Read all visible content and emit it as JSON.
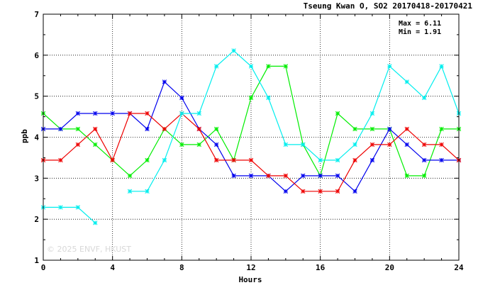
{
  "chart_data": {
    "type": "line",
    "title": "Tseung Kwan O, SO2 20170418-20170421",
    "xlabel": "Hours",
    "ylabel": "ppb",
    "xlim": [
      0,
      24
    ],
    "ylim": [
      1,
      7
    ],
    "xticks": [
      0,
      4,
      8,
      12,
      16,
      20,
      24
    ],
    "yticks": [
      1,
      2,
      3,
      4,
      5,
      6,
      7
    ],
    "grid": true,
    "stats": {
      "max_label": "Max = 6.11",
      "min_label": "Min = 1.91"
    },
    "watermark": "© 2025  ENVF, HKUST",
    "x": [
      0,
      1,
      2,
      3,
      4,
      5,
      6,
      7,
      8,
      9,
      10,
      11,
      12,
      13,
      14,
      15,
      16,
      17,
      18,
      19,
      20,
      21,
      22,
      23,
      24
    ],
    "series": [
      {
        "color": "#00ee00",
        "values": [
          4.58,
          4.2,
          4.2,
          3.82,
          3.44,
          3.06,
          3.44,
          4.2,
          3.82,
          3.82,
          4.2,
          3.44,
          4.96,
          5.73,
          5.73,
          3.82,
          3.06,
          4.58,
          4.2,
          4.2,
          4.2,
          3.06,
          3.06,
          4.2,
          4.2
        ]
      },
      {
        "color": "#0000ee",
        "values": [
          4.2,
          4.2,
          4.58,
          4.58,
          4.58,
          4.58,
          4.2,
          5.35,
          4.96,
          4.2,
          3.82,
          3.06,
          3.06,
          3.06,
          2.68,
          3.06,
          3.06,
          3.06,
          2.68,
          3.44,
          4.2,
          3.82,
          3.44,
          3.44,
          3.44
        ]
      },
      {
        "color": "#ee0000",
        "values": [
          3.44,
          3.44,
          3.82,
          4.2,
          3.44,
          4.58,
          4.58,
          4.2,
          4.58,
          4.2,
          3.44,
          3.44,
          3.44,
          3.06,
          3.06,
          2.68,
          2.68,
          2.68,
          3.44,
          3.82,
          3.82,
          4.2,
          3.82,
          3.82,
          3.44
        ]
      },
      {
        "color": "#00eeee",
        "values": [
          2.29,
          2.29,
          2.29,
          1.91,
          null,
          2.68,
          2.68,
          3.44,
          4.58,
          4.58,
          5.73,
          6.11,
          5.73,
          4.96,
          3.82,
          3.82,
          3.44,
          3.44,
          3.82,
          4.58,
          5.73,
          5.35,
          4.96,
          5.73,
          4.58
        ]
      }
    ]
  }
}
